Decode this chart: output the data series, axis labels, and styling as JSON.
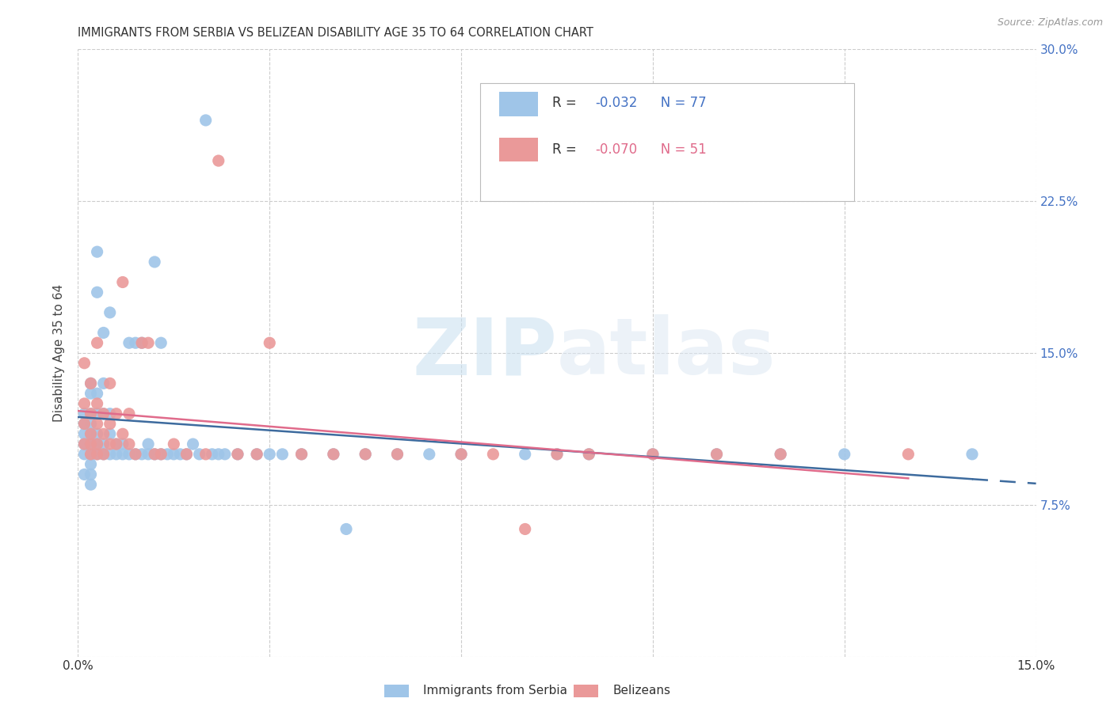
{
  "title": "IMMIGRANTS FROM SERBIA VS BELIZEAN DISABILITY AGE 35 TO 64 CORRELATION CHART",
  "source": "Source: ZipAtlas.com",
  "ylabel": "Disability Age 35 to 64",
  "xlim": [
    0.0,
    0.15
  ],
  "ylim": [
    0.0,
    0.3
  ],
  "serbia_color": "#9fc5e8",
  "belize_color": "#ea9999",
  "serbia_line_color": "#3d6b9e",
  "belize_line_color": "#e06b8b",
  "serbia_R": -0.032,
  "serbia_N": 77,
  "belize_R": -0.07,
  "belize_N": 51,
  "watermark_zip": "ZIP",
  "watermark_atlas": "atlas",
  "legend_label1": "Immigrants from Serbia",
  "legend_label2": "Belizeans",
  "ytick_color": "#4472c4",
  "title_fontsize": 10.5,
  "serbia_x": [
    0.001,
    0.001,
    0.001,
    0.001,
    0.001,
    0.001,
    0.002,
    0.002,
    0.002,
    0.002,
    0.002,
    0.002,
    0.002,
    0.002,
    0.002,
    0.002,
    0.003,
    0.003,
    0.003,
    0.003,
    0.003,
    0.003,
    0.003,
    0.004,
    0.004,
    0.004,
    0.004,
    0.004,
    0.005,
    0.005,
    0.005,
    0.005,
    0.006,
    0.006,
    0.007,
    0.007,
    0.008,
    0.008,
    0.009,
    0.009,
    0.01,
    0.01,
    0.011,
    0.011,
    0.012,
    0.012,
    0.013,
    0.013,
    0.014,
    0.015,
    0.016,
    0.017,
    0.018,
    0.019,
    0.02,
    0.021,
    0.022,
    0.023,
    0.025,
    0.028,
    0.03,
    0.032,
    0.035,
    0.04,
    0.042,
    0.045,
    0.05,
    0.055,
    0.06,
    0.07,
    0.075,
    0.08,
    0.09,
    0.1,
    0.11,
    0.12,
    0.14
  ],
  "serbia_y": [
    0.1,
    0.105,
    0.11,
    0.115,
    0.12,
    0.09,
    0.095,
    0.1,
    0.105,
    0.11,
    0.115,
    0.12,
    0.09,
    0.085,
    0.13,
    0.135,
    0.1,
    0.105,
    0.11,
    0.12,
    0.13,
    0.2,
    0.18,
    0.1,
    0.105,
    0.12,
    0.135,
    0.16,
    0.1,
    0.11,
    0.12,
    0.17,
    0.1,
    0.105,
    0.1,
    0.105,
    0.155,
    0.1,
    0.155,
    0.1,
    0.155,
    0.1,
    0.105,
    0.1,
    0.1,
    0.195,
    0.155,
    0.1,
    0.1,
    0.1,
    0.1,
    0.1,
    0.105,
    0.1,
    0.265,
    0.1,
    0.1,
    0.1,
    0.1,
    0.1,
    0.1,
    0.1,
    0.1,
    0.1,
    0.063,
    0.1,
    0.1,
    0.1,
    0.1,
    0.1,
    0.1,
    0.1,
    0.1,
    0.1,
    0.1,
    0.1,
    0.1
  ],
  "belize_x": [
    0.001,
    0.001,
    0.001,
    0.001,
    0.002,
    0.002,
    0.002,
    0.002,
    0.002,
    0.003,
    0.003,
    0.003,
    0.003,
    0.003,
    0.004,
    0.004,
    0.004,
    0.005,
    0.005,
    0.005,
    0.006,
    0.006,
    0.007,
    0.007,
    0.008,
    0.008,
    0.009,
    0.01,
    0.011,
    0.012,
    0.013,
    0.015,
    0.017,
    0.02,
    0.022,
    0.025,
    0.028,
    0.03,
    0.035,
    0.04,
    0.045,
    0.05,
    0.06,
    0.065,
    0.07,
    0.075,
    0.08,
    0.09,
    0.1,
    0.11,
    0.13
  ],
  "belize_y": [
    0.105,
    0.115,
    0.125,
    0.145,
    0.1,
    0.105,
    0.11,
    0.12,
    0.135,
    0.1,
    0.105,
    0.115,
    0.125,
    0.155,
    0.1,
    0.11,
    0.12,
    0.105,
    0.115,
    0.135,
    0.105,
    0.12,
    0.11,
    0.185,
    0.105,
    0.12,
    0.1,
    0.155,
    0.155,
    0.1,
    0.1,
    0.105,
    0.1,
    0.1,
    0.245,
    0.1,
    0.1,
    0.155,
    0.1,
    0.1,
    0.1,
    0.1,
    0.1,
    0.1,
    0.063,
    0.1,
    0.1,
    0.1,
    0.1,
    0.1,
    0.1
  ]
}
